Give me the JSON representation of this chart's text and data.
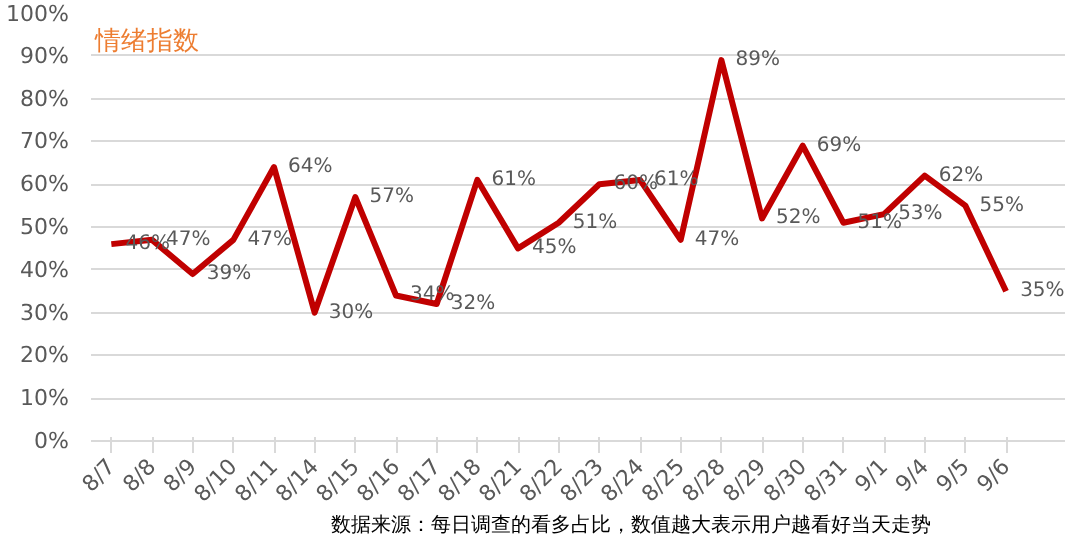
{
  "chart_data": {
    "type": "line",
    "title": "情绪指数",
    "categories": [
      "8/7",
      "8/8",
      "8/9",
      "8/10",
      "8/11",
      "8/14",
      "8/15",
      "8/16",
      "8/17",
      "8/18",
      "8/21",
      "8/22",
      "8/23",
      "8/24",
      "8/25",
      "8/28",
      "8/29",
      "8/30",
      "8/31",
      "9/1",
      "9/4",
      "9/5",
      "9/6"
    ],
    "series": [
      {
        "color": "#c00000",
        "values": [
          46,
          47,
          39,
          47,
          64,
          30,
          57,
          34,
          32,
          61,
          45,
          51,
          60,
          61,
          47,
          89,
          52,
          69,
          51,
          53,
          62,
          55,
          35
        ],
        "value_labels": [
          "46%",
          "47%",
          "39%",
          "47%",
          "64%",
          "30%",
          "57%",
          "34%",
          "32%",
          "61%",
          "45%",
          "51%",
          "60%",
          "61%",
          "47%",
          "89%",
          "52%",
          "69%",
          "51%",
          "53%",
          "62%",
          "55%",
          "35%"
        ]
      }
    ],
    "ylim": [
      0,
      100
    ],
    "yticks": [
      {
        "value": 0,
        "label": "0%"
      },
      {
        "value": 10,
        "label": "10%"
      },
      {
        "value": 20,
        "label": "20%"
      },
      {
        "value": 30,
        "label": "30%"
      },
      {
        "value": 40,
        "label": "40%"
      },
      {
        "value": 50,
        "label": "50%"
      },
      {
        "value": 60,
        "label": "60%"
      },
      {
        "value": 70,
        "label": "70%"
      },
      {
        "value": 80,
        "label": "80%"
      },
      {
        "value": 90,
        "label": "90%"
      },
      {
        "value": 100,
        "label": "100%"
      }
    ],
    "grid": "y",
    "marker": "none",
    "line_style": "solid",
    "annotations": [
      "数据来源：每日调查的看多占比，数值越大表示用户越看好当天走势"
    ]
  }
}
